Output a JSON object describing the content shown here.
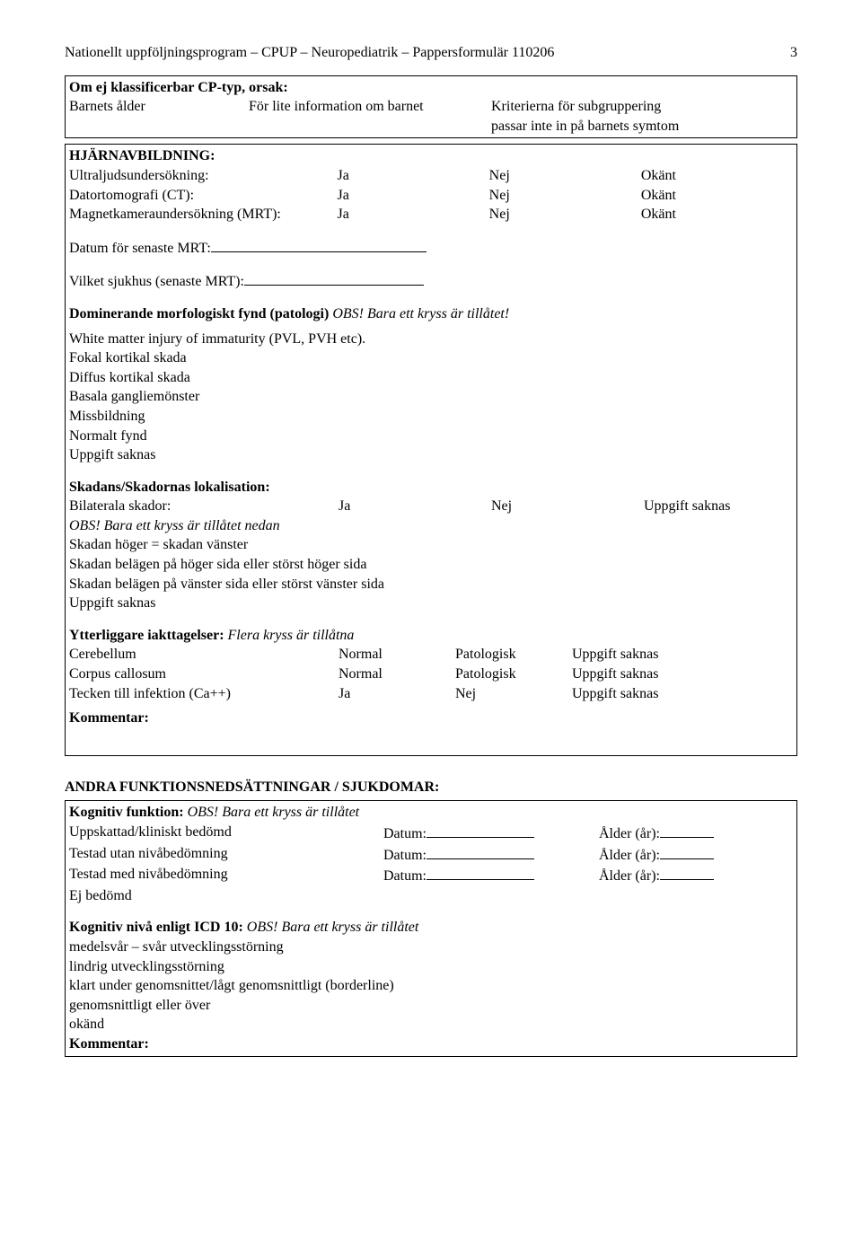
{
  "header": {
    "title": "Nationellt uppföljningsprogram – CPUP – Neuropediatrik – Pappersformulär 110206",
    "page": "3"
  },
  "cp": {
    "heading": "Om ej klassificerbar CP-typ, orsak:",
    "reasons": {
      "r1": "Barnets ålder",
      "r2": "För lite information om barnet",
      "r3a": "Kriterierna för subgruppering",
      "r3b": "passar inte in på barnets symtom"
    }
  },
  "brain_imaging": {
    "heading": "HJÄRNAVBILDNING:",
    "rows": {
      "ultrasound": {
        "label": "Ultraljudsundersökning:",
        "ja": "Ja",
        "nej": "Nej",
        "okant": "Okänt"
      },
      "ct": {
        "label": "Datortomografi (CT):",
        "ja": "Ja",
        "nej": "Nej",
        "okant": "Okänt"
      },
      "mrt": {
        "label": "Magnetkameraundersökning (MRT):",
        "ja": "Ja",
        "nej": "Nej",
        "okant": "Okänt"
      }
    },
    "latest_mrt_date_label": "Datum för senaste MRT:",
    "latest_mrt_hospital_label": "Vilket sjukhus (senaste MRT):",
    "morphology_heading": "Dominerande morfologiskt fynd (patologi) ",
    "morphology_obs": "OBS! Bara ett kryss är tillåtet!",
    "morphology_options": [
      "White matter injury of immaturity (PVL, PVH etc).",
      "Fokal kortikal skada",
      "Diffus kortikal skada",
      "Basala gangliemönster",
      "Missbildning",
      "Normalt fynd",
      "Uppgift saknas"
    ],
    "location_heading": "Skadans/Skadornas lokalisation:",
    "bilateral": {
      "label": "Bilaterala skador:",
      "ja": "Ja",
      "nej": "Nej",
      "uppgift": "Uppgift saknas"
    },
    "obs_one_below": "OBS! Bara ett kryss är tillåtet nedan",
    "location_options": [
      "Skadan höger = skadan vänster",
      "Skadan belägen på höger sida eller störst höger sida",
      "Skadan belägen på vänster sida eller störst vänster sida",
      "Uppgift saknas"
    ],
    "further_heading": "Ytterliggare iakttagelser: ",
    "further_obs": "Flera kryss är tillåtna",
    "further_rows": {
      "cerebellum": {
        "label": "Cerebellum",
        "o1": "Normal",
        "o2": "Patologisk",
        "o3": "Uppgift saknas"
      },
      "corpus": {
        "label": "Corpus callosum",
        "o1": "Normal",
        "o2": "Patologisk",
        "o3": "Uppgift saknas"
      },
      "infection": {
        "label": "Tecken till infektion (Ca++)",
        "o1": "Ja",
        "o2": "Nej",
        "o3": "Uppgift saknas"
      }
    },
    "comment_label": "Kommentar:"
  },
  "other": {
    "heading": "ANDRA FUNKTIONSNEDSÄTTNINGAR / SJUKDOMAR:",
    "cognitive_heading": "Kognitiv funktion: ",
    "cognitive_obs": "OBS! Bara ett kryss är tillåtet",
    "cog_rows": {
      "r1": {
        "label": "Uppskattad/kliniskt bedömd",
        "datum": "Datum:",
        "alder": "Ålder (år):"
      },
      "r2": {
        "label": "Testad utan nivåbedömning",
        "datum": "Datum:",
        "alder": "Ålder (år):"
      },
      "r3": {
        "label": "Testad med nivåbedömning",
        "datum": "Datum:",
        "alder": "Ålder (år):"
      },
      "r4": {
        "label": "Ej bedömd"
      }
    },
    "icd_heading": "Kognitiv nivå enligt ICD 10: ",
    "icd_obs": "OBS! Bara ett kryss är tillåtet",
    "icd_options": [
      "medelsvår – svår utvecklingsstörning",
      "lindrig utvecklingsstörning",
      "klart under genomsnittet/lågt genomsnittligt (borderline)",
      "genomsnittligt eller över",
      "okänd"
    ],
    "comment_label": "Kommentar:"
  }
}
